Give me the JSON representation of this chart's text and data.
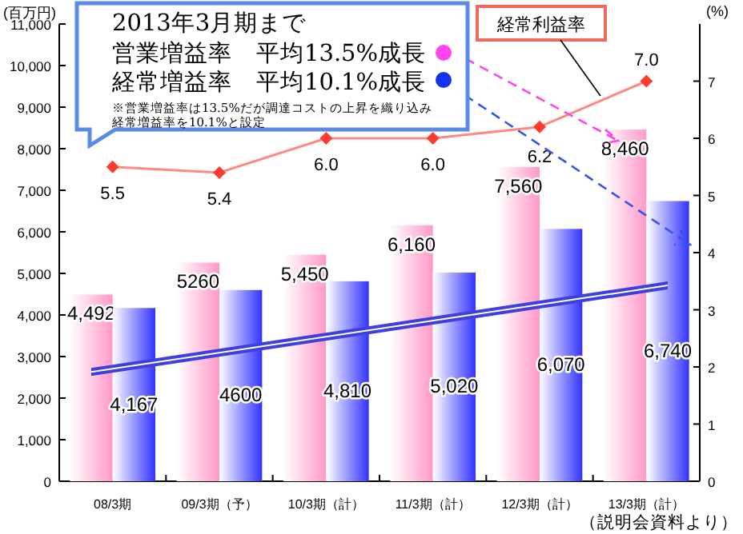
{
  "chart_data": {
    "type": "bar",
    "ylabel": "(百万円)",
    "y2label": "(%)",
    "categories": [
      "08/3期",
      "09/3期（予）",
      "10/3期（計）",
      "11/3期（計）",
      "12/3期（計）",
      "13/3期（計）"
    ],
    "series": [
      {
        "color": "#ff99c8",
        "values": [
          4492,
          5260,
          5450,
          6160,
          7560,
          8460
        ],
        "value_labels": [
          "4,492",
          "5260",
          "5,450",
          "6,160",
          "7,560",
          "8,460"
        ]
      },
      {
        "color": "#3333ff",
        "values": [
          4167,
          4600,
          4810,
          5020,
          6070,
          6740
        ],
        "value_labels": [
          "4,167",
          "4600",
          "4,810",
          "5,020",
          "6,070",
          "6,740"
        ]
      },
      {
        "type": "line",
        "name": "経常利益率",
        "axis": "y2",
        "color": "#ff3b2f",
        "marker": "diamond",
        "values": [
          5.5,
          5.4,
          6.0,
          6.0,
          6.2,
          7.0
        ],
        "value_labels": [
          "5.5",
          "5.4",
          "6.0",
          "6.0",
          "6.2",
          "7.0"
        ]
      }
    ],
    "ylim": [
      0,
      11000
    ],
    "yticks": [
      0,
      {
        "value": 1000,
        "label": "1,000"
      },
      {
        "value": 2000,
        "label": "2,000"
      },
      {
        "value": 3000,
        "label": "3,000"
      },
      {
        "value": 4000,
        "label": "4,000"
      },
      {
        "value": 5000,
        "label": "5,000"
      },
      {
        "value": 6000,
        "label": "6,000"
      },
      {
        "value": 7000,
        "label": "7,000"
      },
      {
        "value": 8000,
        "label": "8,000"
      },
      {
        "value": 9000,
        "label": "9,000"
      },
      {
        "value": 10000,
        "label": "10,000"
      },
      {
        "value": 11000,
        "label": "11,000"
      }
    ],
    "y2lim": [
      0,
      8
    ],
    "y2ticks": [
      0,
      1,
      2,
      3,
      4,
      5,
      6,
      7
    ],
    "annotations": [
      "2013年3月期まで",
      "営業増益率　平均13.5%成長",
      "経常増益率　平均10.1%成長",
      "※営業増益率は13.5%だが調達コストの上昇を織り込み",
      "経常増益率を10.1%と設定",
      "（説明会資料より）"
    ]
  }
}
